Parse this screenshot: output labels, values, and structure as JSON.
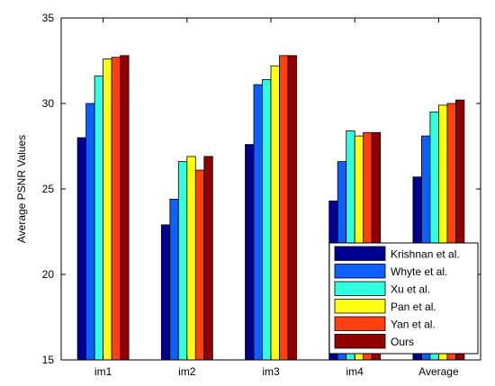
{
  "chart_data": {
    "type": "bar",
    "title": "",
    "xlabel": "",
    "ylabel": "Average PSNR Values",
    "ylim": [
      15,
      35
    ],
    "yticks": [
      15,
      20,
      25,
      30,
      35
    ],
    "grid": false,
    "legend_position": "bottom-right",
    "categories": [
      "im1",
      "im2",
      "im3",
      "im4",
      "Average"
    ],
    "series": [
      {
        "name": "Krishnan et al.",
        "color": "#00008f",
        "values": [
          28.0,
          22.9,
          27.6,
          24.3,
          25.7
        ]
      },
      {
        "name": "Whyte et al.",
        "color": "#0f5fff",
        "values": [
          30.0,
          24.4,
          31.1,
          26.6,
          28.1
        ]
      },
      {
        "name": "Xu et al.",
        "color": "#30ffe0",
        "values": [
          31.6,
          26.6,
          31.4,
          28.4,
          29.5
        ]
      },
      {
        "name": "Pan et al.",
        "color": "#ffff10",
        "values": [
          32.6,
          26.9,
          32.2,
          28.1,
          29.9
        ]
      },
      {
        "name": "Yan et al.",
        "color": "#ff4010",
        "values": [
          32.7,
          26.1,
          32.8,
          28.3,
          30.0
        ]
      },
      {
        "name": "Ours",
        "color": "#8f0000",
        "values": [
          32.8,
          26.9,
          32.8,
          28.3,
          30.2
        ]
      }
    ]
  }
}
